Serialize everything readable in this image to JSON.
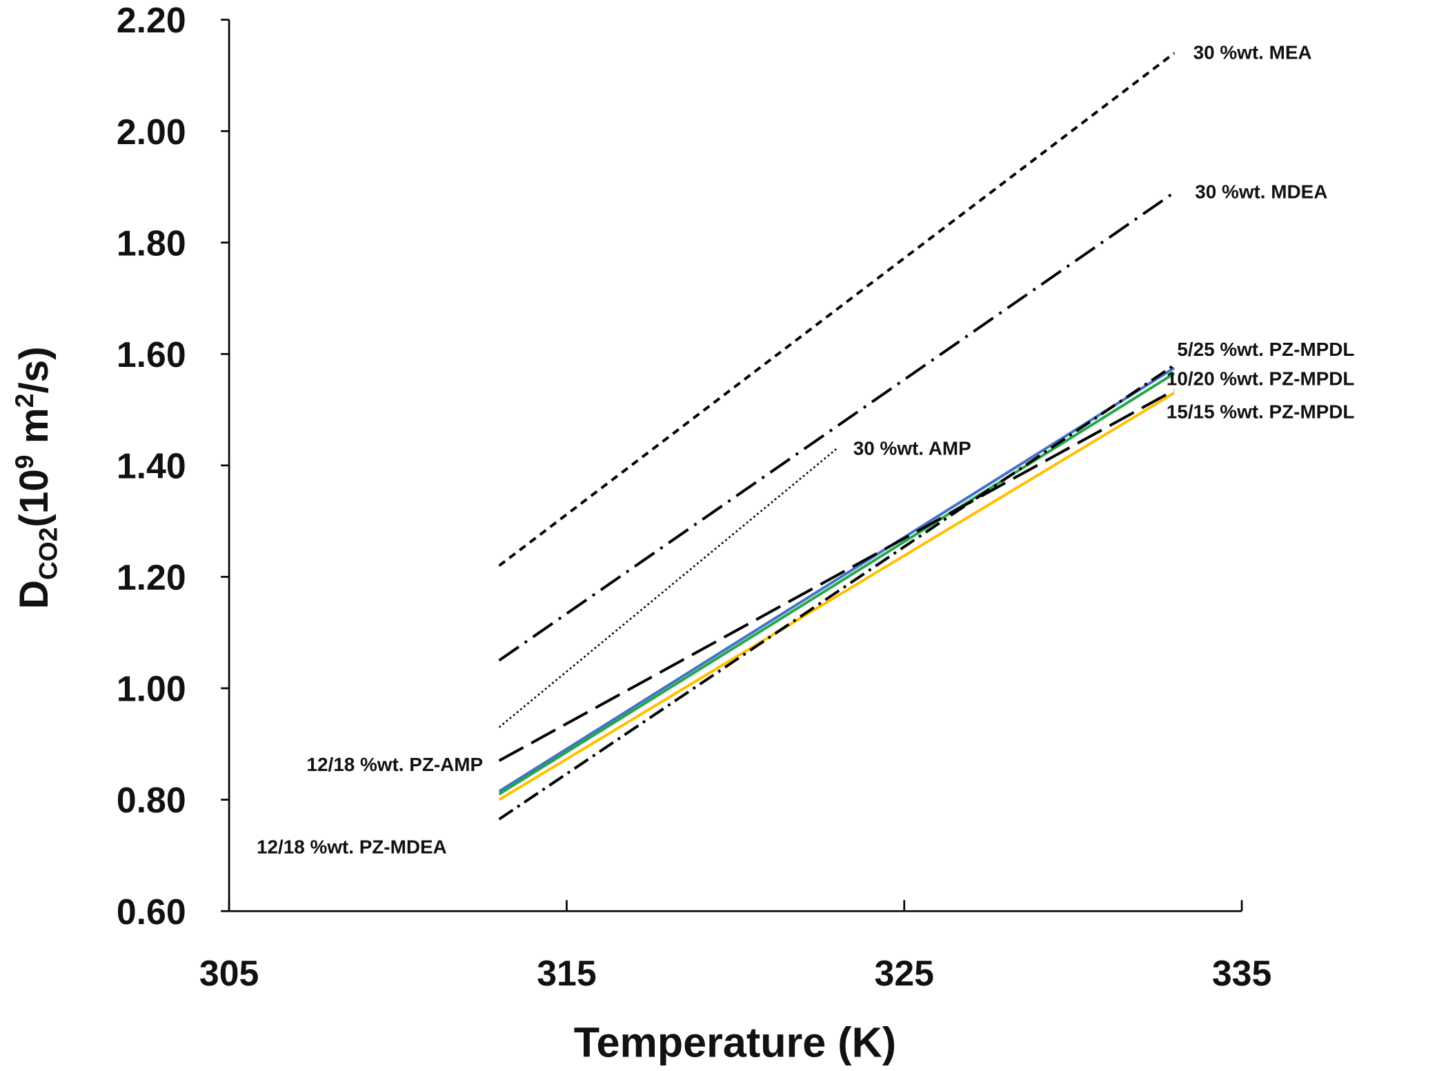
{
  "chart_data": {
    "type": "line",
    "x_label": "Temperature (K)",
    "y_label": {
      "symbol": "D",
      "subscript": "CO2",
      "open": "(10",
      "exp1": "9",
      "mid": " m",
      "exp2": "2",
      "close": "/s)"
    },
    "xlim": [
      305,
      335
    ],
    "xticks": [
      305,
      315,
      325,
      335
    ],
    "ylim": [
      0.6,
      2.2
    ],
    "yticks": [
      {
        "value": 0.6,
        "label": "0.60"
      },
      {
        "value": 0.8,
        "label": "0.80"
      },
      {
        "value": 1.0,
        "label": "1.00"
      },
      {
        "value": 1.2,
        "label": "1.20"
      },
      {
        "value": 1.4,
        "label": "1.40"
      },
      {
        "value": 1.6,
        "label": "1.60"
      },
      {
        "value": 1.8,
        "label": "1.80"
      },
      {
        "value": 2.0,
        "label": "2.00"
      },
      {
        "value": 2.2,
        "label": "2.20"
      }
    ],
    "series": [
      {
        "name": "30 %wt. MEA",
        "color": "#000000",
        "dash": "8 6",
        "x": [
          313,
          333
        ],
        "values": [
          1.22,
          2.14
        ]
      },
      {
        "name": "30 %wt. MDEA",
        "color": "#000000",
        "dash": "26 8 3 8",
        "x": [
          313,
          333
        ],
        "values": [
          1.05,
          1.89
        ]
      },
      {
        "name": "5/25 %wt. PZ-MPDL",
        "color": "#4472c4",
        "dash": "",
        "x": [
          313,
          333
        ],
        "values": [
          0.815,
          1.575
        ]
      },
      {
        "name": "10/20 %wt. PZ-MPDL",
        "color": "#22a84a",
        "dash": "",
        "x": [
          313,
          333
        ],
        "values": [
          0.81,
          1.565
        ]
      },
      {
        "name": "15/15 %wt. PZ-MPDL",
        "color": "#ffc000",
        "dash": "",
        "x": [
          313,
          333
        ],
        "values": [
          0.8,
          1.53
        ]
      },
      {
        "name": "30 %wt. AMP",
        "color": "#000000",
        "dash": "2 3",
        "x": [
          313,
          323
        ],
        "values": [
          0.93,
          1.43
        ]
      },
      {
        "name": "12/18 %wt. PZ-AMP",
        "color": "#000000",
        "dash": "30 10",
        "x": [
          313,
          333
        ],
        "values": [
          0.87,
          1.535
        ]
      },
      {
        "name": "12/18 %wt. PZ-MDEA",
        "color": "#000000",
        "dash": "18 6 3 6",
        "x": [
          313,
          333
        ],
        "values": [
          0.765,
          1.58
        ]
      }
    ]
  }
}
